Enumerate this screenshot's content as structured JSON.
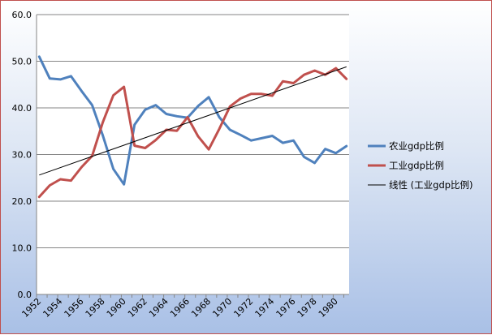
{
  "chart_data": {
    "type": "line",
    "title": "",
    "xlabel": "",
    "ylabel": "",
    "ylim": [
      0,
      60
    ],
    "yticks": [
      "0.0",
      "10.0",
      "20.0",
      "30.0",
      "40.0",
      "50.0",
      "60.0"
    ],
    "x": [
      1952,
      1953,
      1954,
      1955,
      1956,
      1957,
      1958,
      1959,
      1960,
      1961,
      1962,
      1963,
      1964,
      1965,
      1966,
      1967,
      1968,
      1969,
      1970,
      1971,
      1972,
      1973,
      1974,
      1975,
      1976,
      1977,
      1978,
      1979,
      1980,
      1981
    ],
    "xtick_labels": [
      "1952",
      "1954",
      "1956",
      "1958",
      "1960",
      "1962",
      "1964",
      "1966",
      "1968",
      "1970",
      "1972",
      "1974",
      "1976",
      "1978",
      "1980"
    ],
    "grid": "horizontal",
    "legend_position": "right",
    "series": [
      {
        "name": "农业gdp比例",
        "color": "#4f81bd",
        "values": [
          51.0,
          46.3,
          46.1,
          46.8,
          43.6,
          40.6,
          34.1,
          26.9,
          23.6,
          36.4,
          39.6,
          40.6,
          38.7,
          38.2,
          37.9,
          40.4,
          42.3,
          38.0,
          35.3,
          34.2,
          33.0,
          33.5,
          34.0,
          32.5,
          33.0,
          29.5,
          28.2,
          31.2,
          30.3,
          31.8
        ]
      },
      {
        "name": "工业gdp比例",
        "color": "#c0504d",
        "values": [
          20.9,
          23.4,
          24.7,
          24.4,
          27.3,
          29.7,
          36.9,
          42.7,
          44.5,
          31.9,
          31.4,
          33.1,
          35.3,
          35.1,
          38.0,
          33.9,
          31.1,
          35.5,
          40.3,
          42.0,
          43.0,
          43.0,
          42.6,
          45.7,
          45.3,
          47.1,
          48.0,
          47.1,
          48.5,
          46.2
        ]
      }
    ],
    "trendline": {
      "name": "线性 (工业gdp比例)",
      "color": "#000000",
      "start_value": 25.6,
      "end_value": 48.8
    }
  }
}
